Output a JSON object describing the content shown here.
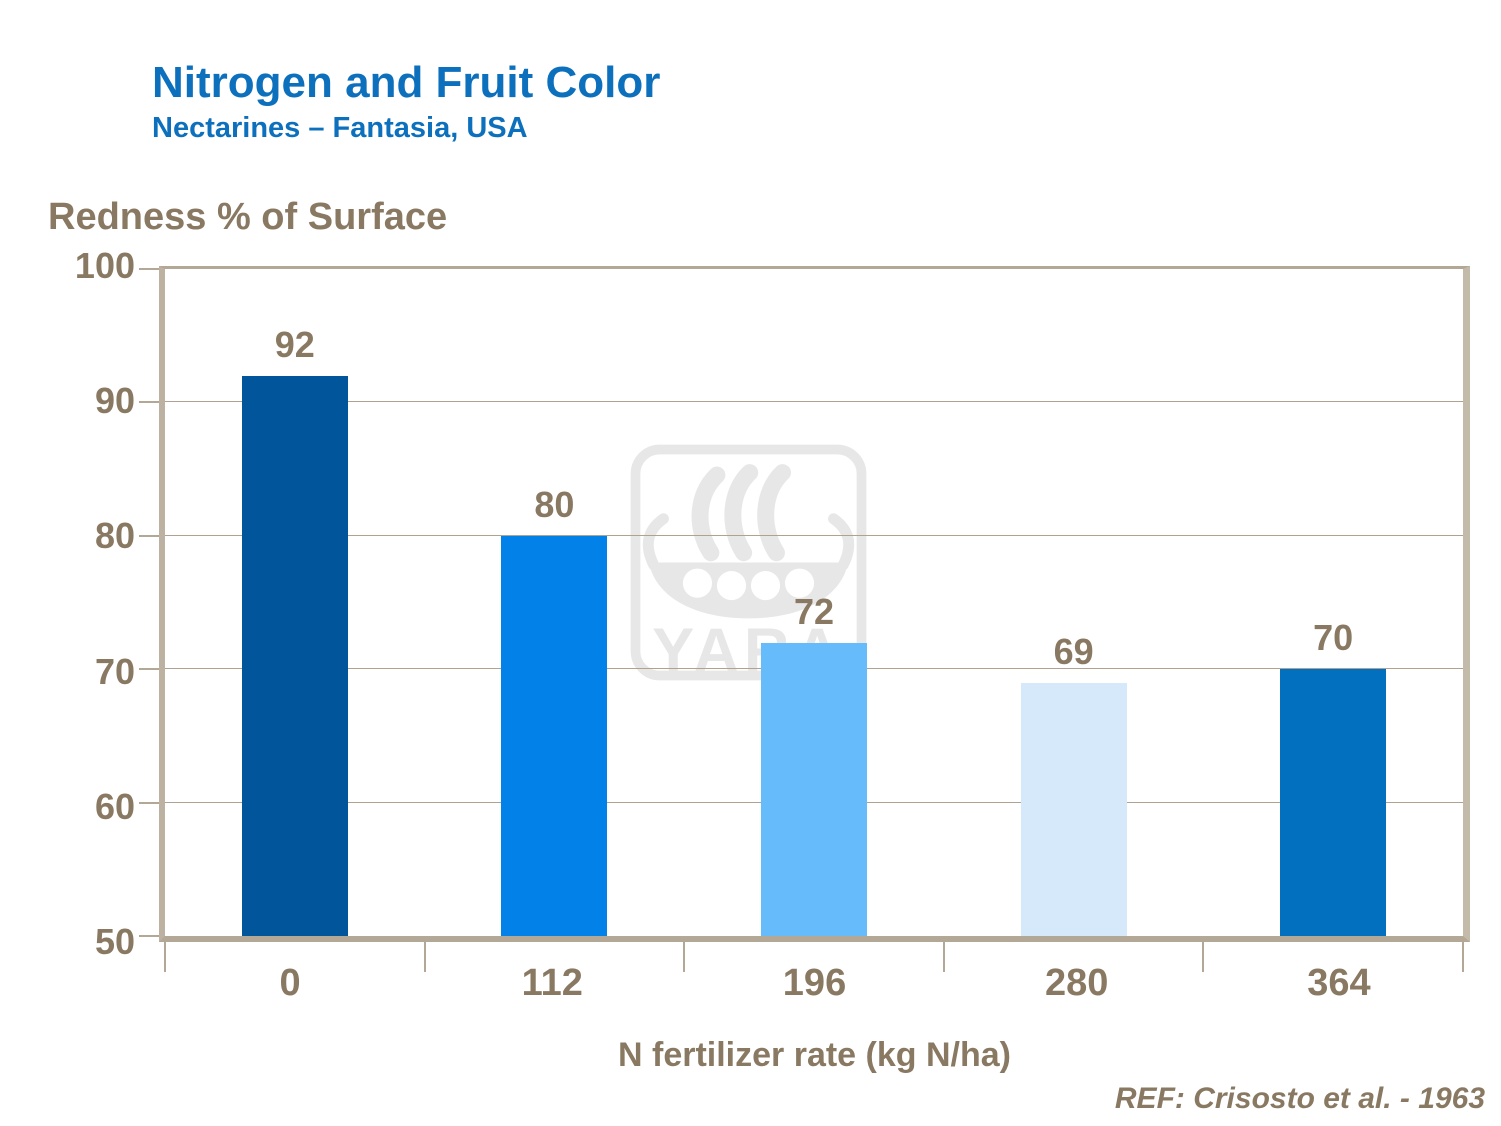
{
  "header": {
    "title": "Nitrogen and Fruit Color",
    "subtitle": "Nectarines – Fantasia, USA"
  },
  "chart_data": {
    "type": "bar",
    "title": "Nitrogen and Fruit Color",
    "subtitle": "Nectarines – Fantasia, USA",
    "categories": [
      "0",
      "112",
      "196",
      "280",
      "364"
    ],
    "values": [
      92,
      80,
      72,
      69,
      70
    ],
    "value_labels": [
      "92",
      "80",
      "72",
      "69",
      "70"
    ],
    "bar_colors": [
      "#01569b",
      "#0282e8",
      "#66bbfa",
      "#d5e9fb",
      "#0370bf"
    ],
    "ylabel": "Redness % of Surface",
    "xlabel": "N fertilizer rate (kg N/ha)",
    "ylim": [
      50,
      100
    ],
    "yticks": [
      100,
      90,
      80,
      70,
      60,
      50
    ],
    "grid": true,
    "legend": false
  },
  "watermark": {
    "icon": "yara-viking-ship-logo",
    "text": "YARA",
    "color": "#e7e7e7"
  },
  "footer": {
    "reference": "REF: Crisosto et al. - 1963"
  },
  "colors": {
    "title_blue": "#0d70bd",
    "text_brown": "#8a7962",
    "axis_tan": "#b3a796",
    "gridline": "#b0a191",
    "background": "#ffffff"
  }
}
